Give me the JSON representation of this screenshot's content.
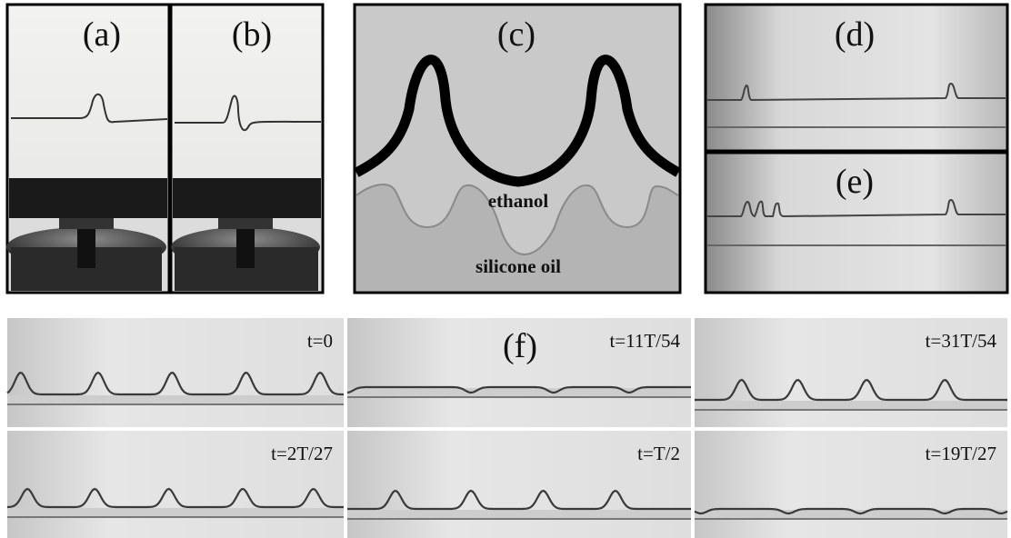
{
  "panels": [
    {
      "label": "(a)"
    },
    {
      "label": "(b)"
    },
    {
      "label": "(c)",
      "annotations": [
        "ethanol",
        "silicone oil"
      ]
    },
    {
      "label": "(d)"
    },
    {
      "label": "(e)"
    },
    {
      "label": "(f)",
      "frames": [
        "t=0",
        "t=11T/54",
        "t=31T/54",
        "t=2T/27",
        "t=T/2",
        "t=19T/27"
      ]
    }
  ]
}
